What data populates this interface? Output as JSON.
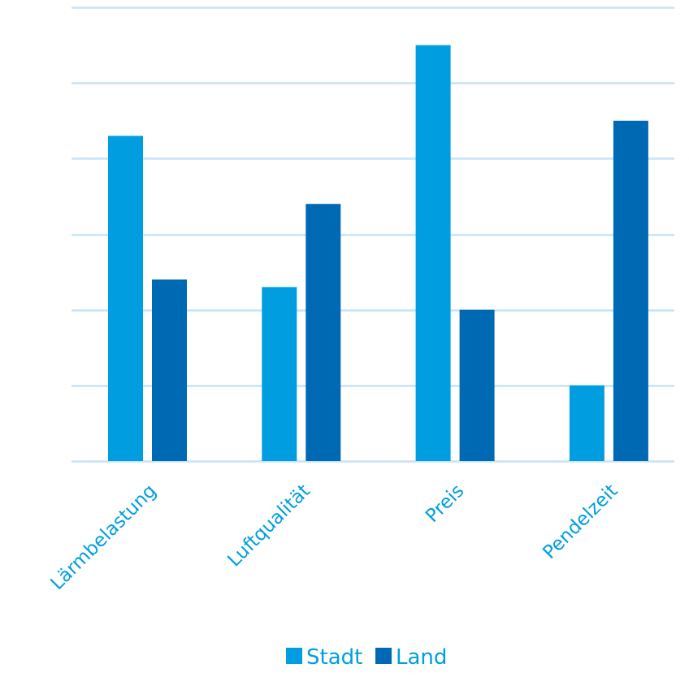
{
  "chart_data": {
    "type": "bar",
    "categories": [
      "Lärmbelastung",
      "Luftqualität",
      "Preis",
      "Pendelzeit"
    ],
    "series": [
      {
        "name": "Stadt",
        "values": [
          4.3,
          2.3,
          5.5,
          1.0
        ],
        "color": "#009ee0"
      },
      {
        "name": "Land",
        "values": [
          2.4,
          3.4,
          2.0,
          4.5
        ],
        "color": "#0069b4"
      }
    ],
    "title": "",
    "xlabel": "",
    "ylabel": "",
    "ylim": [
      0,
      6
    ],
    "y_ticks": [
      0,
      1,
      2,
      3,
      4,
      5,
      6
    ],
    "y_tick_labels_shown": false,
    "grid": true,
    "grid_color": "#c6e4f6",
    "label_color": "#009ee0",
    "legend_position": "bottom"
  }
}
